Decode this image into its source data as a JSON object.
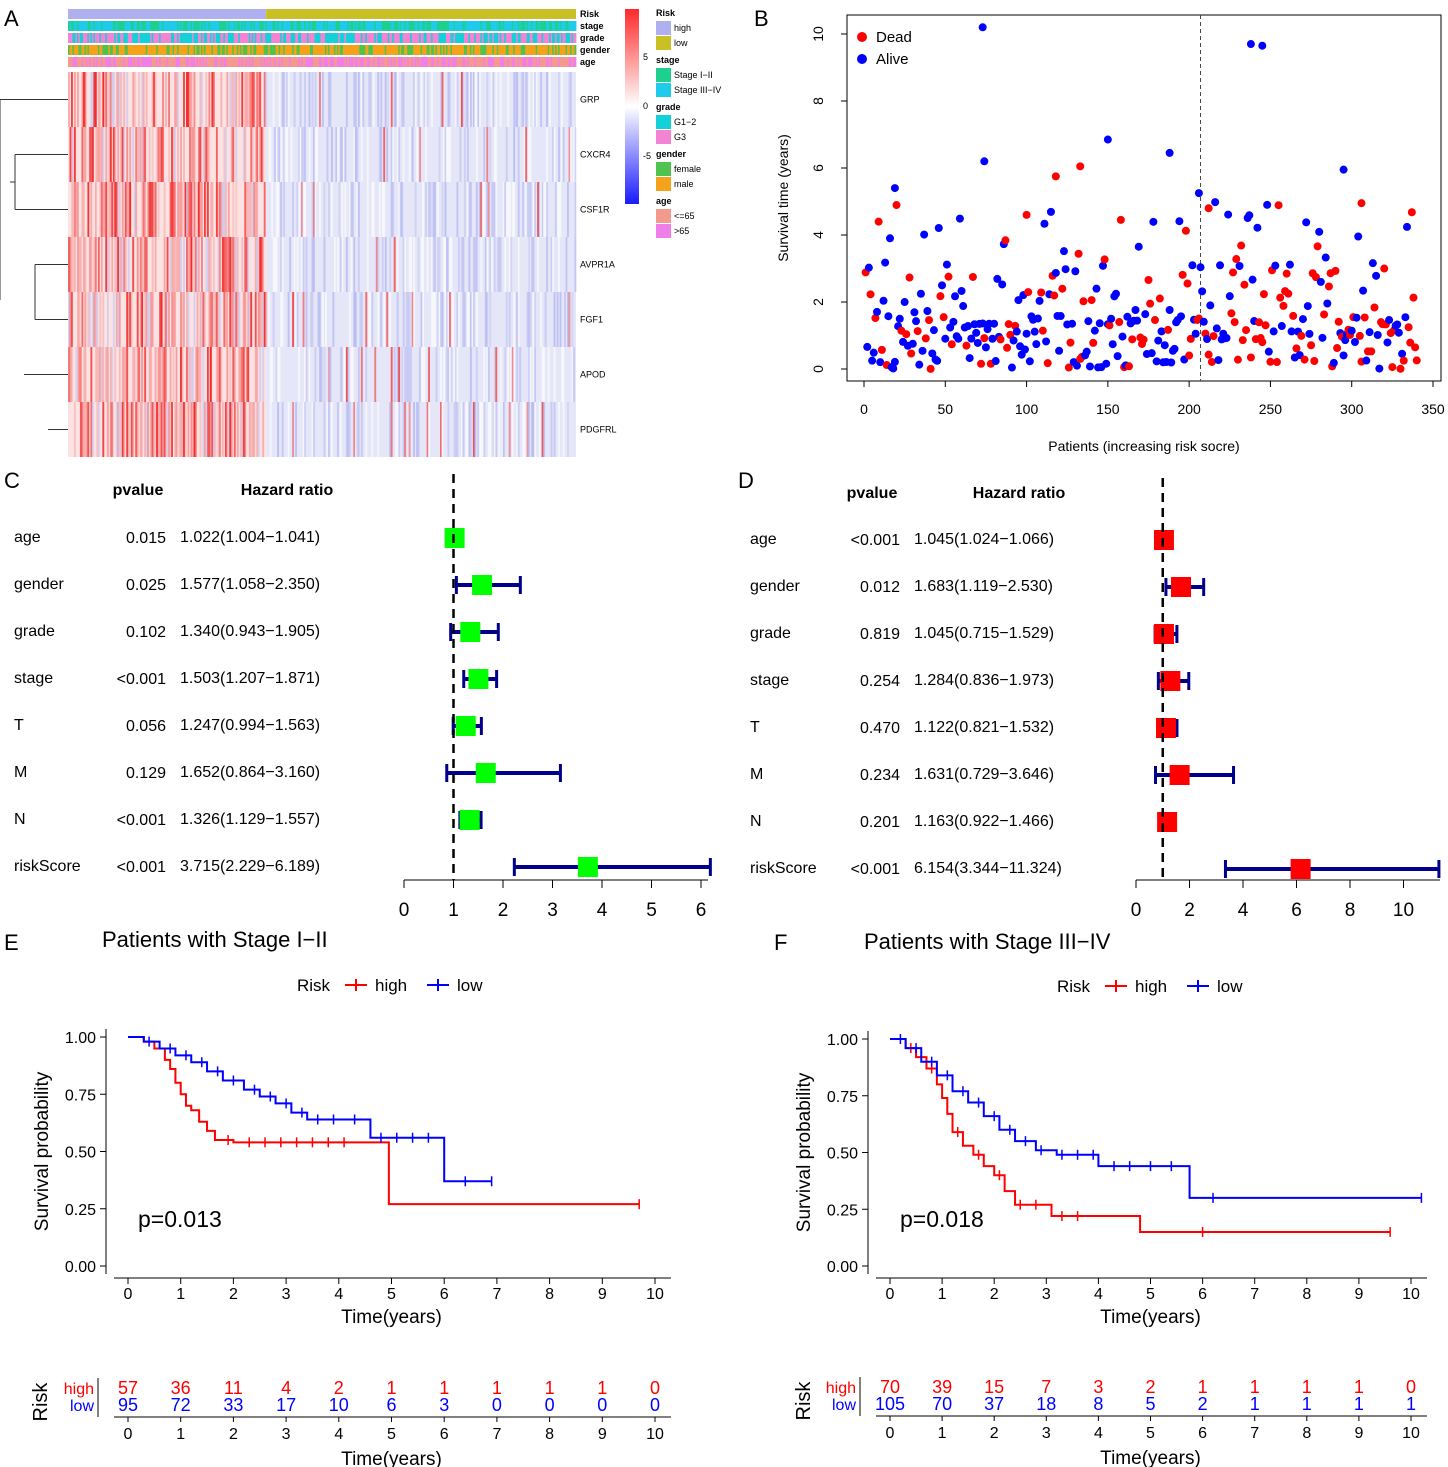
{
  "panel_labels": [
    "A",
    "B",
    "C",
    "D",
    "E",
    "F"
  ],
  "chart_data": [
    {
      "panel": "A",
      "type": "heatmap",
      "annotation_tracks": [
        "Risk",
        "stage",
        "grade",
        "gender",
        "age"
      ],
      "genes": [
        "GRP",
        "CXCR4",
        "CSF1R",
        "AVPR1A",
        "FGF1",
        "APOD",
        "PDGFRL"
      ],
      "risk_split": {
        "high_fraction": 0.39
      },
      "color_scale": {
        "ticks": [
          5,
          0,
          -5
        ],
        "max": "#ff2a2a",
        "mid": "#ffffff",
        "min": "#1a1aff"
      },
      "legend": [
        {
          "title": "Risk",
          "items": [
            {
              "label": "high",
              "color": "#b0b0ee"
            },
            {
              "label": "low",
              "color": "#c8c024"
            }
          ]
        },
        {
          "title": "stage",
          "items": [
            {
              "label": "Stage I−II",
              "color": "#1ecf90"
            },
            {
              "label": "Stage III−IV",
              "color": "#1ecbea"
            }
          ]
        },
        {
          "title": "grade",
          "items": [
            {
              "label": "G1−2",
              "color": "#14d0d8"
            },
            {
              "label": "G3",
              "color": "#f384d4"
            }
          ]
        },
        {
          "title": "gender",
          "items": [
            {
              "label": "female",
              "color": "#4fc34f"
            },
            {
              "label": "male",
              "color": "#f4a21a"
            }
          ]
        },
        {
          "title": "age",
          "items": [
            {
              "label": "<=65",
              "color": "#f49a8c"
            },
            {
              "label": ">65",
              "color": "#f07ee8"
            }
          ]
        }
      ]
    },
    {
      "panel": "B",
      "type": "scatter",
      "xlabel": "Patients (increasing risk socre)",
      "ylabel": "Survival time (years)",
      "xlim": [
        0,
        350
      ],
      "ylim": [
        0,
        10.5
      ],
      "xticks": [
        0,
        50,
        100,
        150,
        200,
        250,
        300,
        350
      ],
      "yticks": [
        0,
        2,
        4,
        6,
        8,
        10
      ],
      "cutoff_x": 207,
      "n_patients": 340,
      "legend": [
        {
          "label": "Dead",
          "color": "#ff0000"
        },
        {
          "label": "Alive",
          "color": "#0000ff"
        }
      ],
      "highlighted_points": [
        {
          "x": 73,
          "y": 10.2,
          "status": "Alive"
        },
        {
          "x": 238,
          "y": 9.7,
          "status": "Alive"
        },
        {
          "x": 245,
          "y": 9.65,
          "status": "Alive"
        },
        {
          "x": 150,
          "y": 6.85,
          "status": "Alive"
        },
        {
          "x": 188,
          "y": 6.45,
          "status": "Alive"
        },
        {
          "x": 74,
          "y": 6.2,
          "status": "Alive"
        },
        {
          "x": 133,
          "y": 6.05,
          "status": "Dead"
        },
        {
          "x": 295,
          "y": 5.95,
          "status": "Alive"
        },
        {
          "x": 118,
          "y": 5.75,
          "status": "Dead"
        },
        {
          "x": 19,
          "y": 5.4,
          "status": "Alive"
        },
        {
          "x": 206,
          "y": 5.25,
          "status": "Alive"
        },
        {
          "x": 306,
          "y": 4.95,
          "status": "Dead"
        },
        {
          "x": 212,
          "y": 4.8,
          "status": "Dead"
        },
        {
          "x": 100,
          "y": 4.6,
          "status": "Dead"
        }
      ]
    },
    {
      "panel": "C",
      "type": "forest",
      "header_pvalue": "pvalue",
      "header_hr": "Hazard ratio",
      "rows": [
        {
          "name": "age",
          "pvalue": "0.015",
          "hr_text": "1.022(1.004−1.041)",
          "hr": 1.022,
          "lo": 1.004,
          "hi": 1.041
        },
        {
          "name": "gender",
          "pvalue": "0.025",
          "hr_text": "1.577(1.058−2.350)",
          "hr": 1.577,
          "lo": 1.058,
          "hi": 2.35
        },
        {
          "name": "grade",
          "pvalue": "0.102",
          "hr_text": "1.340(0.943−1.905)",
          "hr": 1.34,
          "lo": 0.943,
          "hi": 1.905
        },
        {
          "name": "stage",
          "pvalue": "<0.001",
          "hr_text": "1.503(1.207−1.871)",
          "hr": 1.503,
          "lo": 1.207,
          "hi": 1.871
        },
        {
          "name": "T",
          "pvalue": "0.056",
          "hr_text": "1.247(0.994−1.563)",
          "hr": 1.247,
          "lo": 0.994,
          "hi": 1.563
        },
        {
          "name": "M",
          "pvalue": "0.129",
          "hr_text": "1.652(0.864−3.160)",
          "hr": 1.652,
          "lo": 0.864,
          "hi": 3.16
        },
        {
          "name": "N",
          "pvalue": "<0.001",
          "hr_text": "1.326(1.129−1.557)",
          "hr": 1.326,
          "lo": 1.129,
          "hi": 1.557
        },
        {
          "name": "riskScore",
          "pvalue": "<0.001",
          "hr_text": "3.715(2.229−6.189)",
          "hr": 3.715,
          "lo": 2.229,
          "hi": 6.189
        }
      ],
      "xlim": [
        0,
        6.2
      ],
      "xticks": [
        0,
        1,
        2,
        3,
        4,
        5,
        6
      ],
      "ref_line": 1,
      "box_color": "#00ff00",
      "ci_color": "#00008b"
    },
    {
      "panel": "D",
      "type": "forest",
      "header_pvalue": "pvalue",
      "header_hr": "Hazard ratio",
      "rows": [
        {
          "name": "age",
          "pvalue": "<0.001",
          "hr_text": "1.045(1.024−1.066)",
          "hr": 1.045,
          "lo": 1.024,
          "hi": 1.066
        },
        {
          "name": "gender",
          "pvalue": "0.012",
          "hr_text": "1.683(1.119−2.530)",
          "hr": 1.683,
          "lo": 1.119,
          "hi": 2.53
        },
        {
          "name": "grade",
          "pvalue": "0.819",
          "hr_text": "1.045(0.715−1.529)",
          "hr": 1.045,
          "lo": 0.715,
          "hi": 1.529
        },
        {
          "name": "stage",
          "pvalue": "0.254",
          "hr_text": "1.284(0.836−1.973)",
          "hr": 1.284,
          "lo": 0.836,
          "hi": 1.973
        },
        {
          "name": "T",
          "pvalue": "0.470",
          "hr_text": "1.122(0.821−1.532)",
          "hr": 1.122,
          "lo": 0.821,
          "hi": 1.532
        },
        {
          "name": "M",
          "pvalue": "0.234",
          "hr_text": "1.631(0.729−3.646)",
          "hr": 1.631,
          "lo": 0.729,
          "hi": 3.646
        },
        {
          "name": "N",
          "pvalue": "0.201",
          "hr_text": "1.163(0.922−1.466)",
          "hr": 1.163,
          "lo": 0.922,
          "hi": 1.466
        },
        {
          "name": "riskScore",
          "pvalue": "<0.001",
          "hr_text": "6.154(3.344−11.324)",
          "hr": 6.154,
          "lo": 3.344,
          "hi": 11.324
        }
      ],
      "xlim": [
        0,
        11.324
      ],
      "xticks": [
        0,
        2,
        4,
        6,
        8,
        10
      ],
      "ref_line": 1,
      "box_color": "#ff0000",
      "ci_color": "#00008b"
    },
    {
      "panel": "E",
      "type": "line",
      "subtype": "kaplan-meier",
      "title": "Patients with Stage I−II",
      "legend_title": "Risk",
      "xlabel": "Time(years)",
      "ylabel": "Survival probability",
      "xlim": [
        0,
        10
      ],
      "ylim": [
        0,
        1
      ],
      "xticks": [
        0,
        1,
        2,
        3,
        4,
        5,
        6,
        7,
        8,
        9,
        10
      ],
      "yticks": [
        "0.00",
        "0.25",
        "0.50",
        "0.75",
        "1.00"
      ],
      "pvalue": "p=0.013",
      "risk_table_label": "Risk",
      "series": [
        {
          "name": "high",
          "color": "#ff0000",
          "x": [
            0,
            0.3,
            0.5,
            0.7,
            0.8,
            0.9,
            1.0,
            1.1,
            1.2,
            1.35,
            1.5,
            1.65,
            2.0,
            4.95,
            9.7
          ],
          "y": [
            1.0,
            0.98,
            0.95,
            0.9,
            0.86,
            0.8,
            0.75,
            0.7,
            0.68,
            0.63,
            0.59,
            0.55,
            0.54,
            0.27,
            0.27
          ],
          "censor_x": [
            1.9,
            2.3,
            2.6,
            2.9,
            3.2,
            3.5,
            3.8,
            4.1,
            9.7
          ],
          "at_risk": [
            "57",
            "36",
            "11",
            "4",
            "2",
            "1",
            "1",
            "1",
            "1",
            "1",
            "0"
          ]
        },
        {
          "name": "low",
          "color": "#0000ff",
          "x": [
            0,
            0.3,
            0.6,
            0.9,
            1.2,
            1.5,
            1.8,
            2.2,
            2.5,
            2.8,
            3.1,
            3.4,
            4.6,
            6.0,
            6.9
          ],
          "y": [
            1.0,
            0.98,
            0.95,
            0.92,
            0.89,
            0.85,
            0.81,
            0.77,
            0.74,
            0.71,
            0.67,
            0.64,
            0.56,
            0.37,
            0.37
          ],
          "censor_x": [
            0.4,
            0.8,
            1.1,
            1.4,
            1.7,
            2.0,
            2.4,
            2.7,
            3.0,
            3.3,
            3.6,
            3.9,
            4.3,
            4.8,
            5.1,
            5.4,
            5.7,
            6.4,
            6.9
          ],
          "at_risk": [
            "95",
            "72",
            "33",
            "17",
            "10",
            "6",
            "3",
            "0",
            "0",
            "0",
            "0"
          ]
        }
      ]
    },
    {
      "panel": "F",
      "type": "line",
      "subtype": "kaplan-meier",
      "title": "Patients with Stage III−IV",
      "legend_title": "Risk",
      "xlabel": "Time(years)",
      "ylabel": "Survival probability",
      "xlim": [
        0,
        10
      ],
      "ylim": [
        0,
        1
      ],
      "xticks": [
        0,
        1,
        2,
        3,
        4,
        5,
        6,
        7,
        8,
        9,
        10
      ],
      "yticks": [
        "0.00",
        "0.25",
        "0.50",
        "0.75",
        "1.00"
      ],
      "pvalue": "p=0.018",
      "risk_table_label": "Risk",
      "series": [
        {
          "name": "high",
          "color": "#ff0000",
          "x": [
            0,
            0.3,
            0.5,
            0.7,
            0.9,
            1.0,
            1.1,
            1.2,
            1.4,
            1.6,
            1.8,
            2.0,
            2.2,
            2.4,
            3.1,
            4.8,
            9.6
          ],
          "y": [
            1.0,
            0.96,
            0.92,
            0.87,
            0.8,
            0.74,
            0.67,
            0.59,
            0.53,
            0.49,
            0.44,
            0.4,
            0.33,
            0.27,
            0.22,
            0.15,
            0.15
          ],
          "censor_x": [
            0.4,
            0.8,
            1.3,
            1.7,
            2.1,
            2.5,
            2.8,
            3.3,
            3.6,
            6.0,
            9.6
          ],
          "at_risk": [
            "70",
            "39",
            "15",
            "7",
            "3",
            "2",
            "1",
            "1",
            "1",
            "1",
            "0"
          ]
        },
        {
          "name": "low",
          "color": "#0000ff",
          "x": [
            0,
            0.3,
            0.6,
            0.9,
            1.2,
            1.5,
            1.8,
            2.1,
            2.4,
            2.8,
            3.2,
            4.0,
            5.75,
            10.2
          ],
          "y": [
            1.0,
            0.96,
            0.9,
            0.84,
            0.77,
            0.72,
            0.66,
            0.6,
            0.55,
            0.51,
            0.49,
            0.44,
            0.3,
            0.3
          ],
          "censor_x": [
            0.2,
            0.5,
            0.8,
            1.1,
            1.4,
            1.7,
            2.0,
            2.3,
            2.6,
            2.9,
            3.3,
            3.6,
            3.9,
            4.3,
            4.6,
            5.0,
            5.4,
            6.2,
            10.2
          ],
          "at_risk": [
            "105",
            "70",
            "37",
            "18",
            "8",
            "5",
            "2",
            "1",
            "1",
            "1",
            "1"
          ]
        }
      ]
    }
  ]
}
